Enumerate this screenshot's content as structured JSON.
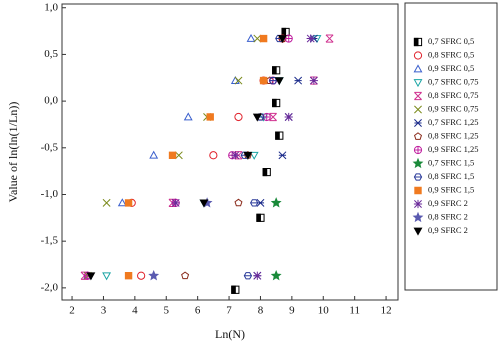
{
  "chart_data": {
    "type": "scatter",
    "x_label": "Ln(N)",
    "y_label": "Value of ln(ln(1/Ln))",
    "xlim": [
      1.68,
      12.38
    ],
    "xticks": [
      2,
      3,
      4,
      5,
      6,
      7,
      8,
      9,
      10,
      11,
      12
    ],
    "ylim": [
      -2.13,
      1.04
    ],
    "yticks": [
      {
        "value": -2,
        "label": "-2,0"
      },
      {
        "value": -1.5,
        "label": "-1,5"
      },
      {
        "value": -1,
        "label": "-1,0"
      },
      {
        "value": -0.5,
        "label": "-0,5"
      },
      {
        "value": 0,
        "label": "0,0"
      },
      {
        "value": 0.5,
        "label": "0,5"
      },
      {
        "value": 1,
        "label": "1,0"
      }
    ],
    "legend": "right",
    "series": [
      {
        "name": "0,7 SFRC 0,5",
        "color": "#000000",
        "marker": "half-square",
        "x": [
          7.2,
          8.0,
          8.2,
          8.6,
          8.5,
          8.5,
          8.8
        ],
        "y": [
          -2.02,
          -1.25,
          -0.76,
          -0.37,
          -0.02,
          0.33,
          0.74
        ]
      },
      {
        "name": "0,8 SFRC 0,5",
        "color": "#e0202a",
        "marker": "circle",
        "x": [
          4.2,
          3.9,
          6.5,
          7.3,
          8.1,
          8.7
        ],
        "y": [
          -1.87,
          -1.09,
          -0.58,
          -0.17,
          0.22,
          0.67
        ]
      },
      {
        "name": "0,9 SFRC 0,5",
        "color": "#3a5fcd",
        "marker": "triangle",
        "x": [
          2.5,
          3.6,
          4.6,
          5.7,
          7.2,
          7.7
        ],
        "y": [
          -1.87,
          -1.09,
          -0.58,
          -0.17,
          0.22,
          0.67
        ]
      },
      {
        "name": "0,7 SFRC 0,75",
        "color": "#1aa5a5",
        "marker": "triangle-down",
        "x": [
          3.1,
          6.2,
          7.8,
          8.1,
          8.6,
          9.8
        ],
        "y": [
          -1.87,
          -1.09,
          -0.58,
          -0.17,
          0.22,
          0.67
        ]
      },
      {
        "name": "0,8 SFRC 0,75",
        "color": "#d0308f",
        "marker": "x-box",
        "x": [
          2.4,
          5.2,
          7.3,
          8.4,
          9.7,
          10.2
        ],
        "y": [
          -1.87,
          -1.09,
          -0.58,
          -0.17,
          0.22,
          0.67
        ]
      },
      {
        "name": "0,9 SFRC 0,75",
        "color": "#7a8a1a",
        "marker": "x",
        "x": [
          2.5,
          3.1,
          5.4,
          6.3,
          7.3,
          7.9
        ],
        "y": [
          -1.87,
          -1.09,
          -0.58,
          -0.17,
          0.22,
          0.67
        ]
      },
      {
        "name": "0,7 SFRC 1,25",
        "color": "#1a2a8a",
        "marker": "x-bar",
        "x": [
          7.9,
          8.0,
          8.7,
          8.9,
          9.2,
          9.7
        ],
        "y": [
          -1.87,
          -1.09,
          -0.58,
          -0.17,
          0.22,
          0.67
        ]
      },
      {
        "name": "0,8 SFRC 1,25",
        "color": "#8a2a1a",
        "marker": "pentagon",
        "x": [
          5.6,
          7.3,
          7.6,
          8.0,
          8.3,
          8.7
        ],
        "y": [
          -1.87,
          -1.09,
          -0.58,
          -0.17,
          0.22,
          0.67
        ]
      },
      {
        "name": "0,9 SFRC 1,25",
        "color": "#c020a0",
        "marker": "circle-plus",
        "x": [
          2.5,
          5.3,
          7.1,
          8.2,
          8.4,
          8.9
        ],
        "y": [
          -1.87,
          -1.09,
          -0.58,
          -0.17,
          0.22,
          0.67
        ]
      },
      {
        "name": "0,7 SFRC 1,5",
        "color": "#1a8a3a",
        "marker": "star",
        "x": [
          8.5,
          8.5
        ],
        "y": [
          -1.87,
          -1.09
        ]
      },
      {
        "name": "0,8 SFRC 1,5",
        "color": "#2a3a9a",
        "marker": "hexagon",
        "x": [
          7.6,
          7.8,
          7.5,
          8.0,
          8.4,
          8.6
        ],
        "y": [
          -1.87,
          -1.09,
          -0.58,
          -0.17,
          0.22,
          0.67
        ]
      },
      {
        "name": "0,9 SFRC 1,5",
        "color": "#f07a20",
        "marker": "square-x",
        "x": [
          3.8,
          3.8,
          5.2,
          6.4,
          8.1,
          8.1
        ],
        "y": [
          -1.87,
          -1.09,
          -0.58,
          -0.17,
          0.22,
          0.67
        ]
      },
      {
        "name": "0,9 SFRC 2",
        "color": "#6a2a9a",
        "marker": "asterisk",
        "x": [
          7.9,
          5.3,
          7.2,
          8.9,
          9.7,
          9.6
        ],
        "y": [
          -1.87,
          -1.09,
          -0.58,
          -0.17,
          0.22,
          0.67
        ]
      },
      {
        "name": "0,8 SFRC 2",
        "color": "#5a5ab0",
        "marker": "star",
        "x": [
          4.6,
          6.3
        ],
        "y": [
          -1.87,
          -1.09
        ]
      },
      {
        "name": "0,9 SFRC 2",
        "color": "#000000",
        "marker": "triangle-down-filled",
        "x": [
          2.6,
          6.2,
          7.6,
          7.9,
          8.6,
          8.7
        ],
        "y": [
          -1.87,
          -1.09,
          -0.58,
          -0.17,
          0.22,
          0.67
        ]
      }
    ]
  }
}
